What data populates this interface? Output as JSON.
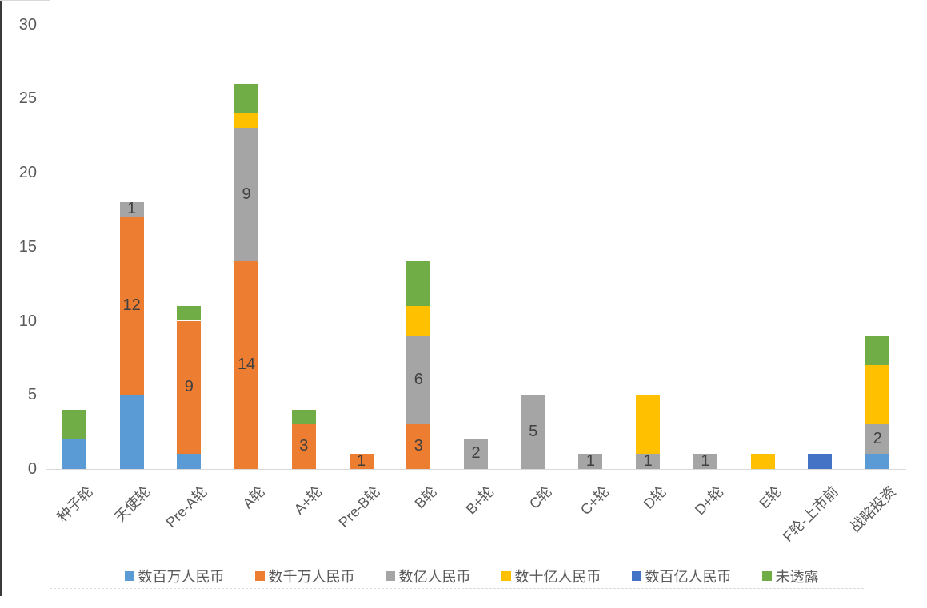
{
  "chart_data": {
    "type": "bar",
    "stacked": true,
    "categories": [
      "种子轮",
      "天使轮",
      "Pre-A轮",
      "A轮",
      "A+轮",
      "Pre-B轮",
      "B轮",
      "B+轮",
      "C轮",
      "C+轮",
      "D轮",
      "D+轮",
      "E轮",
      "F轮-上市前",
      "战略投资"
    ],
    "series": [
      {
        "name": "数百万人民币",
        "color": "#5B9BD5",
        "show_labels": false,
        "values": [
          2,
          5,
          1,
          0,
          0,
          0,
          0,
          0,
          0,
          0,
          0,
          0,
          0,
          0,
          1
        ]
      },
      {
        "name": "数千万人民币",
        "color": "#ED7D31",
        "show_labels": true,
        "values": [
          0,
          12,
          9,
          14,
          3,
          1,
          3,
          0,
          0,
          0,
          0,
          0,
          0,
          0,
          0
        ]
      },
      {
        "name": "数亿人民币",
        "color": "#A5A5A5",
        "show_labels": true,
        "values": [
          0,
          1,
          0,
          9,
          0,
          0,
          6,
          2,
          5,
          1,
          1,
          1,
          0,
          0,
          2
        ]
      },
      {
        "name": "数十亿人民币",
        "color": "#FFC000",
        "show_labels": false,
        "values": [
          0,
          0,
          0,
          1,
          0,
          0,
          2,
          0,
          0,
          0,
          4,
          0,
          1,
          0,
          4
        ]
      },
      {
        "name": "数百亿人民币",
        "color": "#4472C4",
        "show_labels": false,
        "values": [
          0,
          0,
          0,
          0,
          0,
          0,
          0,
          0,
          0,
          0,
          0,
          0,
          0,
          1,
          0
        ]
      },
      {
        "name": "未透露",
        "color": "#70AD47",
        "show_labels": false,
        "values": [
          2,
          0,
          1,
          2,
          1,
          0,
          3,
          0,
          0,
          0,
          0,
          0,
          0,
          0,
          2
        ]
      }
    ],
    "totals": [
      4,
      18,
      11,
      26,
      4,
      1,
      14,
      2,
      5,
      1,
      5,
      1,
      1,
      1,
      9
    ],
    "y_axis": {
      "min": 0,
      "max": 30,
      "tick_step": 5,
      "tick_labels": [
        "0",
        "5",
        "10",
        "15",
        "20",
        "25",
        "30"
      ]
    },
    "x_axis": {
      "label_rotation_deg": -45
    },
    "legend": {
      "position": "bottom",
      "entries": [
        "数百万人民币",
        "数千万人民币",
        "数亿人民币",
        "数十亿人民币",
        "数百亿人民币",
        "未透露"
      ]
    },
    "grid": false,
    "colors": {
      "axis_text": "#595959",
      "data_label_text": "#404040",
      "axis_line": "#d9d9d9"
    }
  }
}
